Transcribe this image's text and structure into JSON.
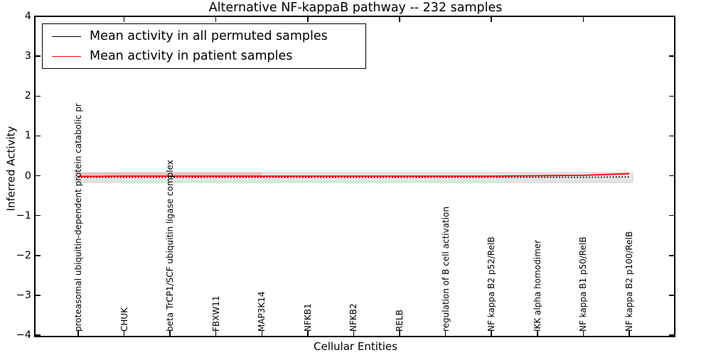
{
  "title": "Alternative NF-kappaB pathway -- 232 samples",
  "axes": {
    "ylabel": "Inferred Activity",
    "xlabel": "Cellular Entities",
    "ytick_labels": [
      "4",
      "3",
      "2",
      "1",
      "0",
      "−1",
      "−2",
      "−3",
      "−4"
    ],
    "ytick_values": [
      4,
      3,
      2,
      1,
      0,
      -1,
      -2,
      -3,
      -4
    ],
    "ylim": [
      -4,
      4
    ]
  },
  "legend": {
    "items": [
      {
        "label": "Mean activity in all permuted samples",
        "color": "#000000"
      },
      {
        "label": "Mean activity in patient samples",
        "color": "#ff0000"
      }
    ]
  },
  "chart_data": {
    "type": "line",
    "title": "Alternative NF-kappaB pathway -- 232 samples",
    "xlabel": "Cellular Entities",
    "ylabel": "Inferred Activity",
    "ylim": [
      -4,
      4
    ],
    "grid": false,
    "legend_position": "upper left",
    "categories": [
      "proteasomal ubiquitin-dependent protein catabolic pr",
      "CHUK",
      "beta TrCP1/SCF ubiquitin ligase complex",
      "FBXW11",
      "MAP3K14",
      "NFKB1",
      "NFKB2",
      "RELB",
      "regulation of B cell activation",
      "NF kappa B2 p52/RelB",
      "IKK alpha homodimer",
      "NF kappa B1 p50/RelB",
      "NF kappa B2 p100/RelB"
    ],
    "series": [
      {
        "name": "Mean activity in all permuted samples",
        "color": "#000000",
        "linestyle": "dotted",
        "values": [
          -0.04,
          -0.04,
          -0.04,
          -0.04,
          -0.04,
          -0.04,
          -0.04,
          -0.04,
          -0.04,
          -0.04,
          -0.04,
          -0.04,
          -0.03
        ]
      },
      {
        "name": "Mean activity in patient samples",
        "color": "#ff0000",
        "linestyle": "solid",
        "values": [
          -0.02,
          -0.01,
          -0.01,
          -0.01,
          -0.01,
          -0.01,
          -0.01,
          -0.01,
          -0.01,
          -0.01,
          0.0,
          0.01,
          0.05
        ]
      }
    ],
    "permuted_band": {
      "lower": -0.17,
      "upper": 0.08,
      "color": "#e4e4e4",
      "edge_color": "#d2d2d2"
    }
  }
}
